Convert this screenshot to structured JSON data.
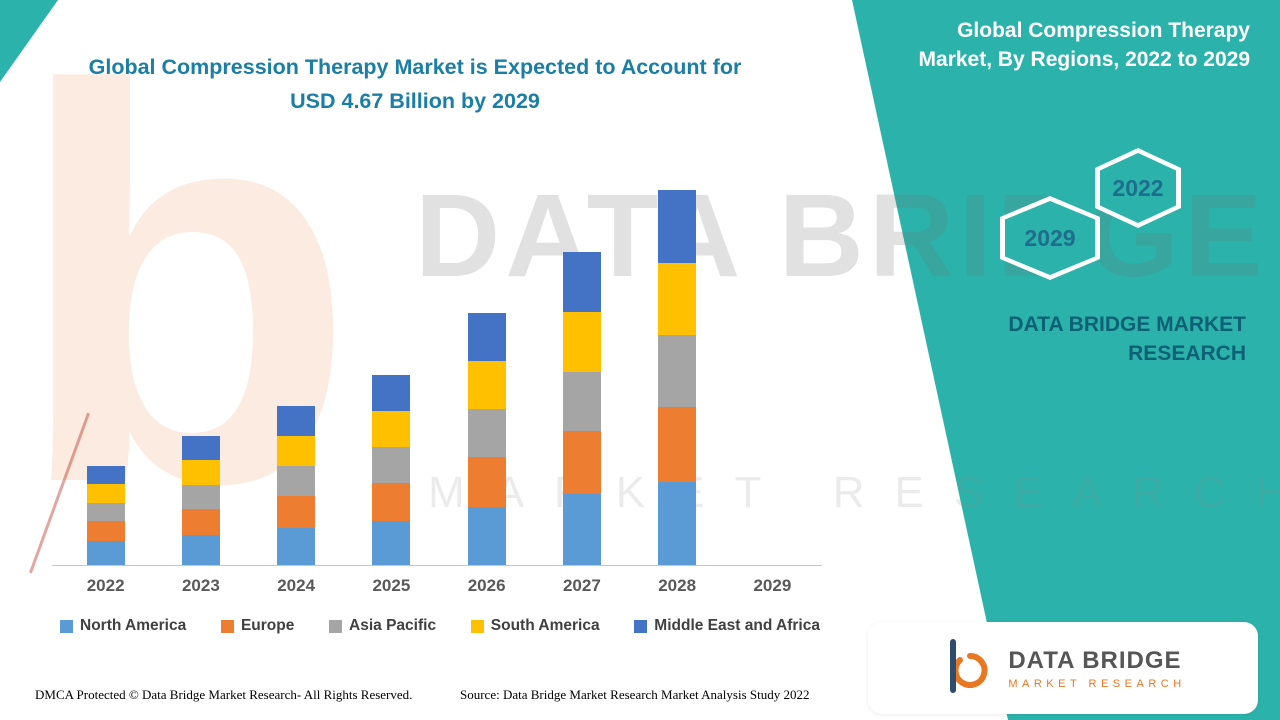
{
  "title": {
    "line1": "Global Compression Therapy Market is Expected to Account for",
    "line2": "USD 4.67 Billion by 2029"
  },
  "right_panel": {
    "heading": "Global Compression Therapy Market, By Regions, 2022 to 2029",
    "badge_back": "2029",
    "badge_front": "2022",
    "brand_line1": "DATA BRIDGE MARKET",
    "brand_line2": "RESEARCH"
  },
  "watermark": {
    "big_text": "DATA BRIDGE",
    "sub_text": "MARKET RESEARCH",
    "letter": "b"
  },
  "logo_card": {
    "name": "DATA BRIDGE",
    "tagline": "MARKET RESEARCH"
  },
  "footer": {
    "left": "DMCA Protected © Data Bridge Market Research- All Rights Reserved.",
    "source": "Source: Data Bridge Market Research Market Analysis Study 2022"
  },
  "colors": {
    "teal_panel": "#2BB3AB",
    "title_text": "#1A7EA6",
    "brand_text": "#0E6075",
    "logo_orange": "#E87722",
    "logo_blue": "#2E4D6B"
  },
  "chart_data": {
    "type": "bar",
    "stacked": true,
    "title": "",
    "xlabel": "",
    "ylabel": "",
    "y_axis_visible": false,
    "units": "relative height (no y-axis labels shown in source image)",
    "legend_position": "bottom",
    "categories": [
      "2022",
      "2023",
      "2024",
      "2025",
      "2026",
      "2027",
      "2028",
      "2029"
    ],
    "series": [
      {
        "name": "North America",
        "color": "#5B9BD5",
        "values": [
          24,
          30,
          37,
          44,
          58,
          71,
          83,
          0
        ]
      },
      {
        "name": "Europe",
        "color": "#ED7D31",
        "values": [
          20,
          26,
          32,
          38,
          50,
          63,
          75,
          0
        ]
      },
      {
        "name": "Asia Pacific",
        "color": "#A5A5A5",
        "values": [
          18,
          24,
          30,
          36,
          48,
          59,
          72,
          0
        ]
      },
      {
        "name": "South America",
        "color": "#FFC000",
        "values": [
          19,
          25,
          30,
          36,
          48,
          60,
          72,
          0
        ]
      },
      {
        "name": "Middle East and Africa",
        "color": "#4472C4",
        "values": [
          18,
          24,
          30,
          36,
          48,
          60,
          73,
          0
        ]
      }
    ],
    "totals_note": "2029 column labeled on axis but no bar drawn"
  }
}
